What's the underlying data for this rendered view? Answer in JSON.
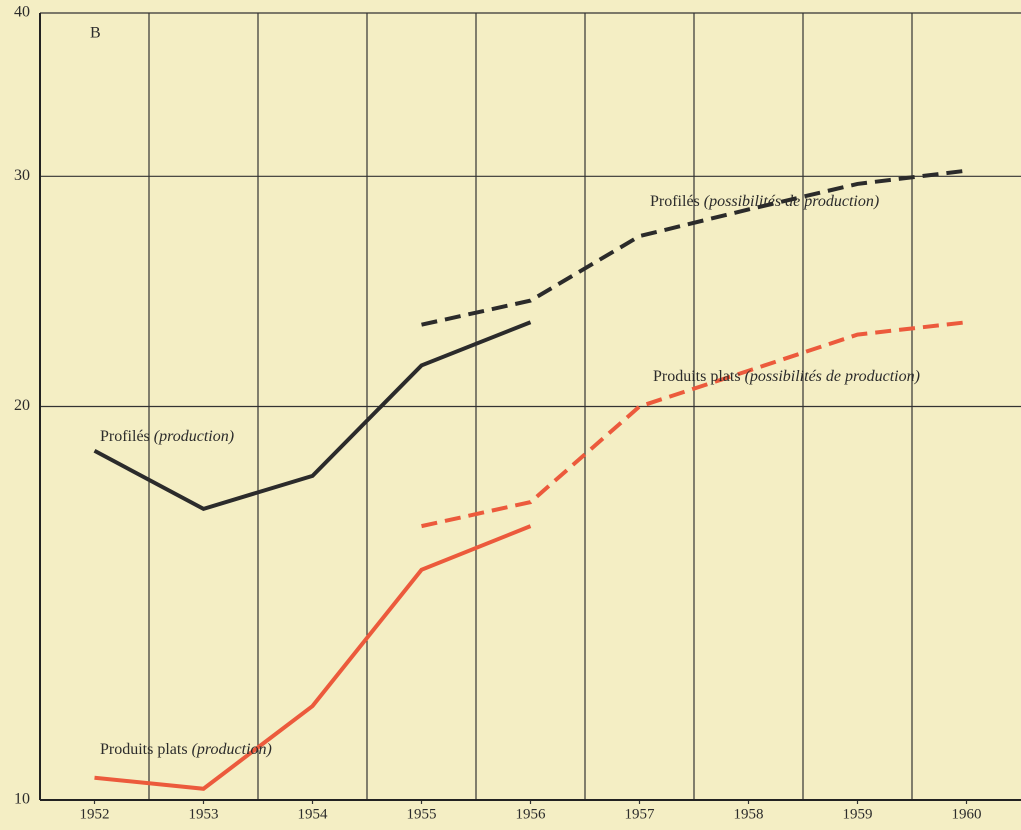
{
  "chart_data": {
    "type": "line",
    "annotation": "B",
    "x": [
      1952,
      1953,
      1954,
      1955,
      1956,
      1957,
      1958,
      1959,
      1960
    ],
    "xlim": [
      1951.5,
      1960.5
    ],
    "xticks": [
      1952,
      1953,
      1954,
      1955,
      1956,
      1957,
      1958,
      1959,
      1960
    ],
    "ylim": [
      10,
      40
    ],
    "yticks": [
      10,
      20,
      30,
      40
    ],
    "log_scale": true,
    "grid": true,
    "series": [
      {
        "name": [
          "Profilés",
          "(production)"
        ],
        "color": "#2b2b2b",
        "dashed": false,
        "values": [
          18.5,
          16.7,
          17.7,
          21.5,
          23.2,
          null,
          null,
          null,
          null
        ]
      },
      {
        "name": [
          "Profilés",
          "(possibilités de production)"
        ],
        "color": "#2b2b2b",
        "dashed": true,
        "values": [
          null,
          null,
          null,
          23.1,
          24.1,
          27.0,
          28.3,
          29.6,
          30.3
        ]
      },
      {
        "name": [
          "Produits plats",
          "(possibilités de production)"
        ],
        "color": "#ec5a3c",
        "dashed": true,
        "values": [
          null,
          null,
          null,
          16.2,
          16.9,
          20.0,
          21.3,
          22.7,
          23.2
        ]
      },
      {
        "name": [
          "Produits plats",
          "(production)"
        ],
        "color": "#ec5a3c",
        "dashed": false,
        "values": [
          10.4,
          10.2,
          11.8,
          15.0,
          16.2,
          null,
          null,
          null,
          null
        ]
      }
    ]
  }
}
